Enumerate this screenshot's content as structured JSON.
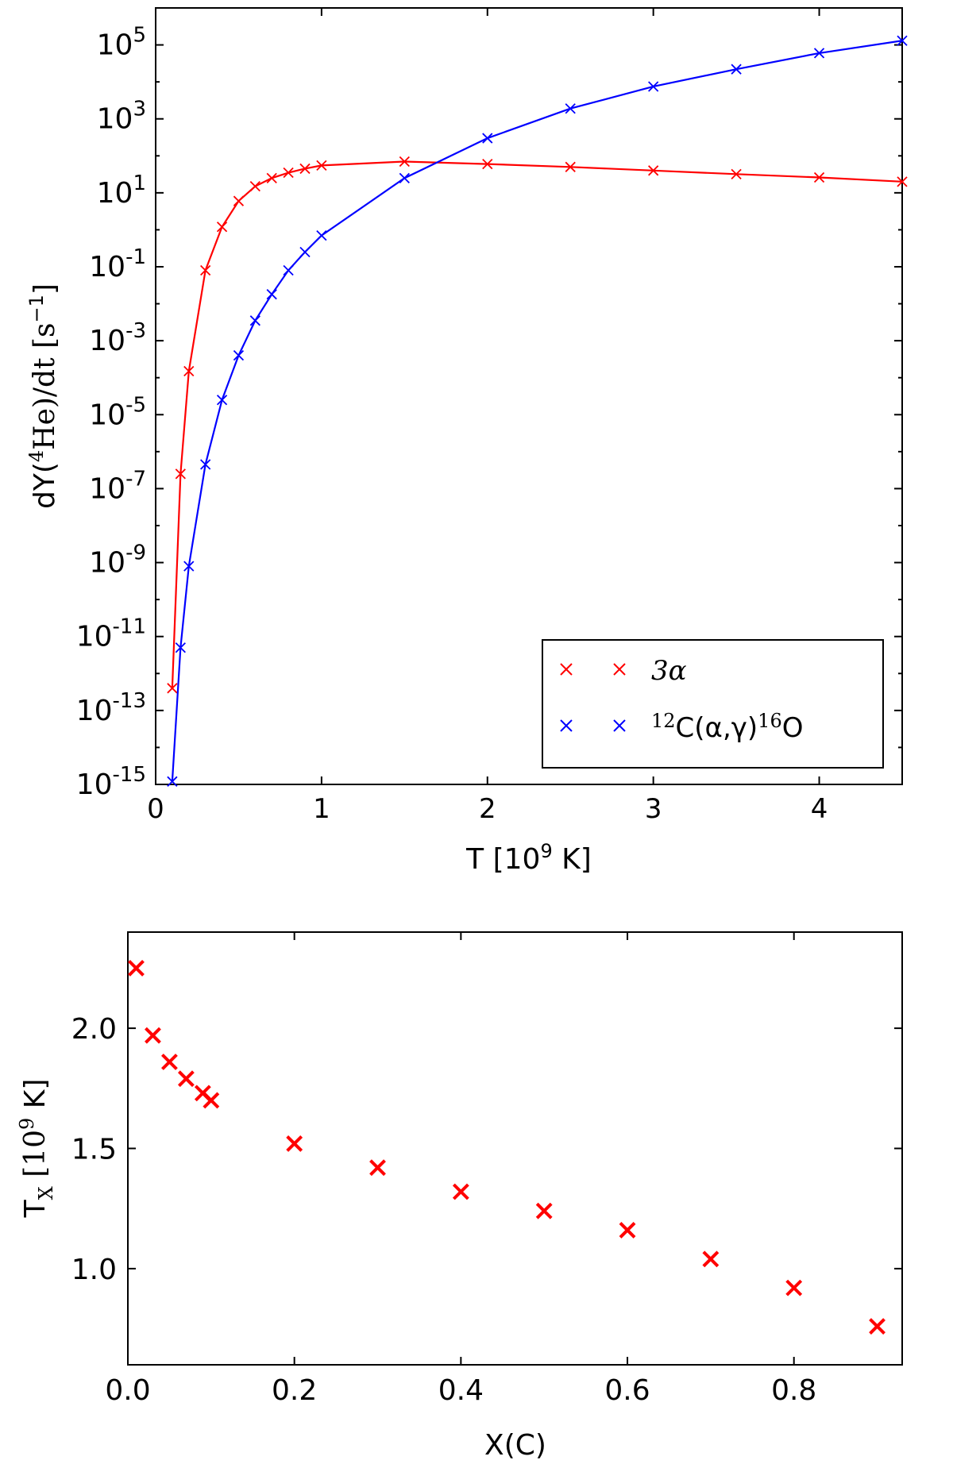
{
  "chart_data": [
    {
      "type": "line",
      "xscale": "linear",
      "yscale": "log",
      "xlim": [
        0,
        4.5
      ],
      "ylim": [
        1e-15,
        1000000.0
      ],
      "xticks": [
        "0",
        "1",
        "2",
        "3",
        "4"
      ],
      "yticks": [
        {
          "base": "10",
          "exp": "5",
          "value": 100000.0
        },
        {
          "base": "10",
          "exp": "3",
          "value": 1000.0
        },
        {
          "base": "10",
          "exp": "1",
          "value": 10.0
        },
        {
          "base": "10",
          "exp": "-1",
          "value": 0.1
        },
        {
          "base": "10",
          "exp": "-3",
          "value": 0.001
        },
        {
          "base": "10",
          "exp": "-5",
          "value": 1e-05
        },
        {
          "base": "10",
          "exp": "-7",
          "value": 1e-07
        },
        {
          "base": "10",
          "exp": "-9",
          "value": 1e-09
        },
        {
          "base": "10",
          "exp": "-11",
          "value": 1e-11
        },
        {
          "base": "10",
          "exp": "-13",
          "value": 1e-13
        },
        {
          "base": "10",
          "exp": "-15",
          "value": 1e-15
        }
      ],
      "xlabel": {
        "pre": "T [10",
        "sup": "9",
        "post": " K]"
      },
      "ylabel": {
        "pre": "dY(",
        "sup": "4",
        "mid": "He)/dt [s",
        "sup2": "−1",
        "post": "]"
      },
      "legend": {
        "position": "lower-right",
        "entries": [
          {
            "label": "3α"
          },
          {
            "label_pre_sup": "12",
            "label_main": "C(α,γ)",
            "label_post_sup": "16",
            "label_end": "O"
          }
        ]
      },
      "series": [
        {
          "name": "3α",
          "color": "#ff0000",
          "x": [
            0.1,
            0.15,
            0.2,
            0.3,
            0.4,
            0.5,
            0.6,
            0.7,
            0.8,
            0.9,
            1.0,
            1.5,
            2.0,
            2.5,
            3.0,
            3.5,
            4.0,
            4.5
          ],
          "y": [
            4e-13,
            2.5e-07,
            0.00015,
            0.08,
            1.2,
            6,
            15,
            25,
            35,
            45,
            55,
            70,
            60,
            50,
            40,
            32,
            26,
            20
          ]
        },
        {
          "name": "12C(α,γ)16O",
          "color": "#0000ff",
          "x": [
            0.1,
            0.15,
            0.2,
            0.3,
            0.4,
            0.5,
            0.6,
            0.7,
            0.8,
            0.9,
            1.0,
            1.5,
            2.0,
            2.5,
            3.0,
            3.5,
            4.0,
            4.5
          ],
          "y": [
            1.2e-15,
            5e-12,
            8e-10,
            4.5e-07,
            2.5e-05,
            0.0004,
            0.0035,
            0.018,
            0.08,
            0.25,
            0.7,
            25,
            300,
            1900,
            7500,
            22000,
            60000,
            130000
          ]
        }
      ]
    },
    {
      "type": "scatter",
      "xlim": [
        0,
        0.93
      ],
      "ylim": [
        0.6,
        2.4
      ],
      "xticks": [
        "0.0",
        "0.2",
        "0.4",
        "0.6",
        "0.8"
      ],
      "yticks": [
        "1.0",
        "1.5",
        "2.0"
      ],
      "xlabel": "X(C)",
      "ylabel": {
        "pre": "T",
        "sub": "X",
        "mid": " [10",
        "sup": "9",
        "post": " K]"
      },
      "series": [
        {
          "name": "T_X",
          "color": "#ff0000",
          "x": [
            0.01,
            0.03,
            0.05,
            0.07,
            0.09,
            0.1,
            0.2,
            0.3,
            0.4,
            0.5,
            0.6,
            0.7,
            0.8,
            0.9
          ],
          "y": [
            2.25,
            1.97,
            1.86,
            1.79,
            1.73,
            1.7,
            1.52,
            1.42,
            1.32,
            1.24,
            1.16,
            1.04,
            0.92,
            0.76
          ]
        }
      ]
    }
  ]
}
